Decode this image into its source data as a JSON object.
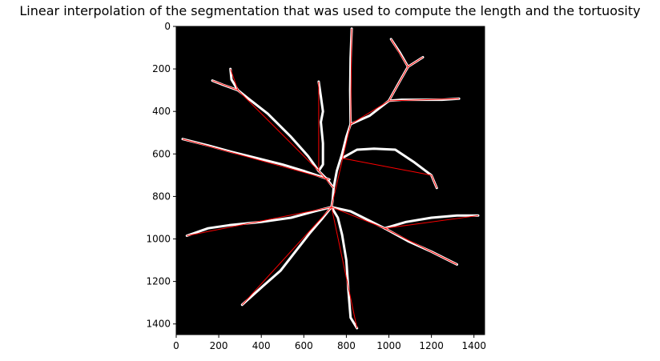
{
  "chart_data": {
    "type": "image",
    "title": "Linear interpolation of the segmentation that was used to compute the length and the tortuosity",
    "xlim": [
      0,
      1450
    ],
    "ylim": [
      1450,
      0
    ],
    "x_ticks": [
      0,
      200,
      400,
      600,
      800,
      1000,
      1200,
      1400
    ],
    "y_ticks": [
      0,
      200,
      400,
      600,
      800,
      1000,
      1200,
      1400
    ],
    "background_color": "#000000",
    "segmentation_color": "#ffffff",
    "interpolation_color": "#ff0000",
    "grid": false,
    "segmentation_paths": [
      [
        [
          825,
          10
        ],
        [
          820,
          150
        ],
        [
          818,
          300
        ],
        [
          820,
          460
        ]
      ],
      [
        [
          820,
          460
        ],
        [
          800,
          520
        ],
        [
          780,
          600
        ],
        [
          755,
          680
        ],
        [
          740,
          760
        ],
        [
          735,
          820
        ],
        [
          730,
          850
        ]
      ],
      [
        [
          820,
          460
        ],
        [
          910,
          420
        ],
        [
          1000,
          350
        ],
        [
          1050,
          260
        ],
        [
          1090,
          190
        ],
        [
          1160,
          145
        ]
      ],
      [
        [
          1000,
          350
        ],
        [
          1060,
          345
        ],
        [
          1150,
          345
        ],
        [
          1250,
          345
        ],
        [
          1330,
          340
        ]
      ],
      [
        [
          1090,
          190
        ],
        [
          1050,
          120
        ],
        [
          1010,
          60
        ]
      ],
      [
        [
          740,
          760
        ],
        [
          710,
          720
        ],
        [
          690,
          700
        ],
        [
          670,
          680
        ]
      ],
      [
        [
          670,
          680
        ],
        [
          690,
          650
        ],
        [
          690,
          550
        ],
        [
          680,
          450
        ],
        [
          690,
          400
        ],
        [
          680,
          330
        ],
        [
          670,
          260
        ]
      ],
      [
        [
          670,
          680
        ],
        [
          620,
          610
        ],
        [
          540,
          520
        ],
        [
          430,
          410
        ],
        [
          340,
          340
        ],
        [
          290,
          300
        ],
        [
          260,
          250
        ],
        [
          255,
          200
        ]
      ],
      [
        [
          290,
          300
        ],
        [
          220,
          275
        ],
        [
          170,
          255
        ]
      ],
      [
        [
          720,
          720
        ],
        [
          600,
          680
        ],
        [
          500,
          650
        ],
        [
          380,
          620
        ],
        [
          260,
          590
        ],
        [
          150,
          560
        ],
        [
          30,
          530
        ]
      ],
      [
        [
          780,
          620
        ],
        [
          850,
          580
        ],
        [
          930,
          575
        ],
        [
          1030,
          580
        ],
        [
          1120,
          640
        ],
        [
          1200,
          700
        ],
        [
          1225,
          760
        ]
      ],
      [
        [
          730,
          850
        ],
        [
          650,
          870
        ],
        [
          540,
          900
        ],
        [
          400,
          920
        ],
        [
          250,
          935
        ],
        [
          150,
          950
        ],
        [
          50,
          985
        ]
      ],
      [
        [
          730,
          850
        ],
        [
          690,
          900
        ],
        [
          630,
          970
        ],
        [
          560,
          1060
        ],
        [
          490,
          1150
        ],
        [
          410,
          1220
        ],
        [
          310,
          1310
        ]
      ],
      [
        [
          730,
          850
        ],
        [
          760,
          900
        ],
        [
          780,
          980
        ],
        [
          800,
          1100
        ],
        [
          810,
          1250
        ],
        [
          820,
          1370
        ],
        [
          850,
          1420
        ]
      ],
      [
        [
          730,
          850
        ],
        [
          820,
          870
        ],
        [
          900,
          910
        ],
        [
          980,
          950
        ],
        [
          1090,
          1010
        ],
        [
          1200,
          1060
        ],
        [
          1320,
          1120
        ]
      ],
      [
        [
          980,
          950
        ],
        [
          1080,
          920
        ],
        [
          1200,
          900
        ],
        [
          1320,
          890
        ],
        [
          1420,
          890
        ]
      ]
    ],
    "interpolation_lines": [
      [
        [
          825,
          10
        ],
        [
          820,
          460
        ]
      ],
      [
        [
          820,
          460
        ],
        [
          730,
          850
        ]
      ],
      [
        [
          820,
          460
        ],
        [
          1000,
          350
        ]
      ],
      [
        [
          1000,
          350
        ],
        [
          1090,
          190
        ]
      ],
      [
        [
          1090,
          190
        ],
        [
          1160,
          145
        ]
      ],
      [
        [
          1090,
          190
        ],
        [
          1010,
          60
        ]
      ],
      [
        [
          1000,
          350
        ],
        [
          1330,
          340
        ]
      ],
      [
        [
          740,
          760
        ],
        [
          670,
          680
        ]
      ],
      [
        [
          670,
          680
        ],
        [
          670,
          260
        ]
      ],
      [
        [
          670,
          680
        ],
        [
          290,
          300
        ]
      ],
      [
        [
          290,
          300
        ],
        [
          255,
          200
        ]
      ],
      [
        [
          290,
          300
        ],
        [
          170,
          255
        ]
      ],
      [
        [
          720,
          720
        ],
        [
          30,
          530
        ]
      ],
      [
        [
          780,
          620
        ],
        [
          1200,
          700
        ]
      ],
      [
        [
          1200,
          700
        ],
        [
          1225,
          760
        ]
      ],
      [
        [
          730,
          850
        ],
        [
          50,
          985
        ]
      ],
      [
        [
          730,
          850
        ],
        [
          310,
          1310
        ]
      ],
      [
        [
          730,
          850
        ],
        [
          850,
          1420
        ]
      ],
      [
        [
          730,
          850
        ],
        [
          980,
          950
        ]
      ],
      [
        [
          980,
          950
        ],
        [
          1320,
          1120
        ]
      ],
      [
        [
          980,
          950
        ],
        [
          1420,
          890
        ]
      ]
    ]
  }
}
